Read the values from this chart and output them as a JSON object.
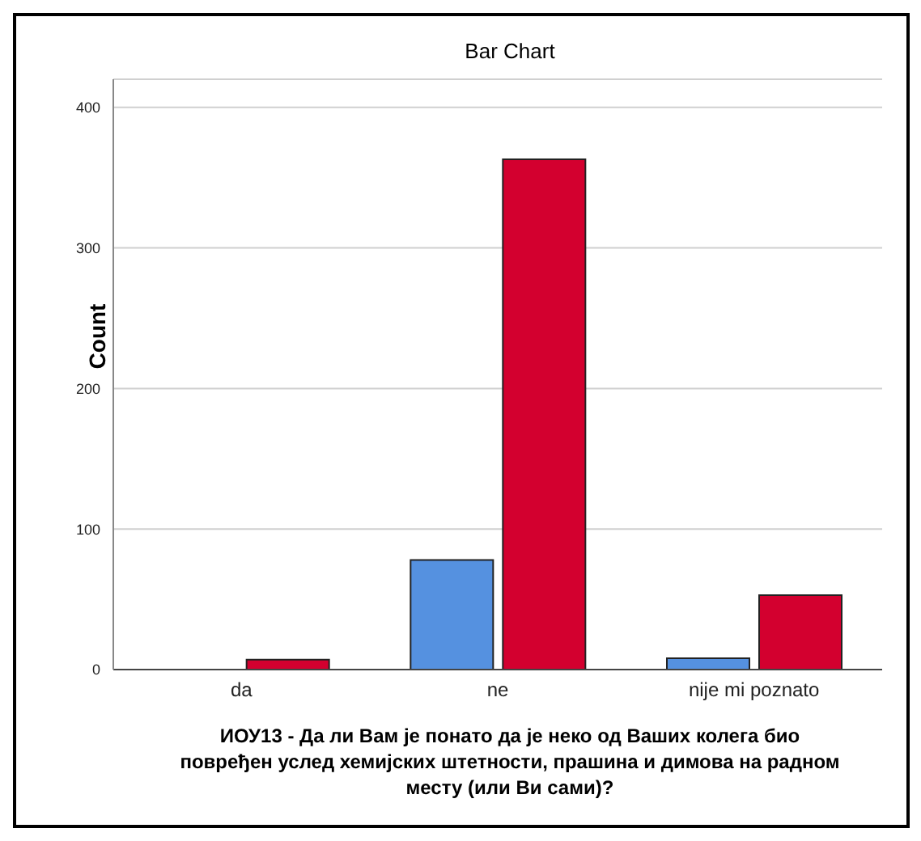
{
  "chart_data": {
    "type": "bar",
    "title": "Bar Chart",
    "xlabel": "ИОУ13 - Да ли Вам је понато да је неко од Ваших колега био повређен услед хемијских  штетности, прашина и димова на радном месту (или Ви сами)?",
    "ylabel": "Count",
    "categories": [
      "da",
      "ne",
      "nije mi poznato"
    ],
    "series": [
      {
        "color": "#5591e0",
        "values": [
          0,
          78,
          8
        ]
      },
      {
        "color": "#d3002f",
        "values": [
          7,
          363,
          53
        ]
      }
    ],
    "ylim": [
      0,
      420
    ],
    "yticks": [
      0,
      100,
      200,
      300,
      400
    ],
    "grid": "y"
  }
}
